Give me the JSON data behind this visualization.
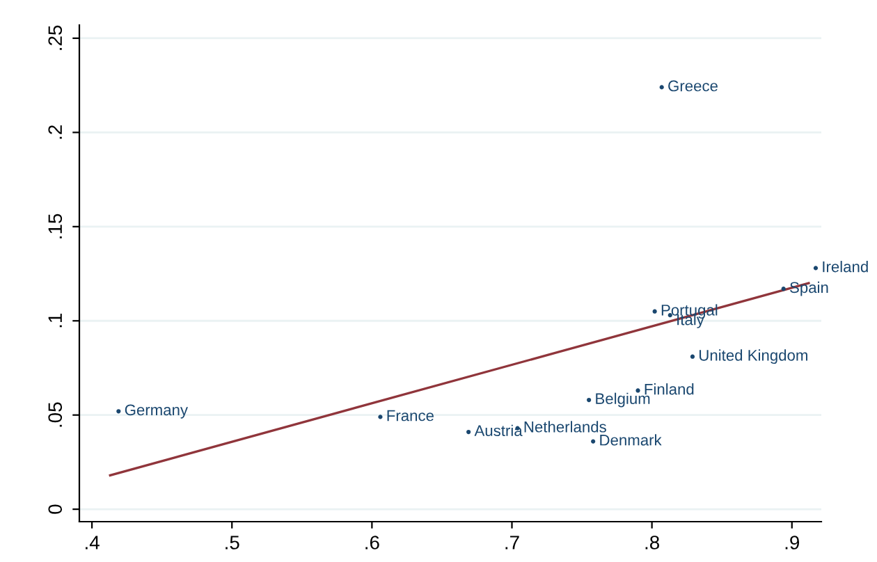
{
  "chart_data": {
    "type": "scatter",
    "xlim": [
      0.391,
      0.921
    ],
    "ylim": [
      -0.0066,
      0.257
    ],
    "xticks": [
      {
        "value": 0.4,
        "label": ".4"
      },
      {
        "value": 0.5,
        "label": ".5"
      },
      {
        "value": 0.6,
        "label": ".6"
      },
      {
        "value": 0.7,
        "label": ".7"
      },
      {
        "value": 0.8,
        "label": ".8"
      },
      {
        "value": 0.9,
        "label": ".9"
      }
    ],
    "yticks": [
      0,
      {
        "value": 0.05,
        "label": ".05"
      },
      {
        "value": 0.1,
        "label": ".1"
      },
      {
        "value": 0.15,
        "label": ".15"
      },
      {
        "value": 0.2,
        "label": ".2"
      },
      {
        "value": 0.25,
        "label": ".25"
      }
    ],
    "grid": "y",
    "series": [
      {
        "marker": "circle",
        "color": "#1a476f",
        "x": [
          0.419,
          0.606,
          0.669,
          0.704,
          0.758,
          0.755,
          0.79,
          0.829,
          0.802,
          0.813,
          0.894,
          0.917,
          0.807
        ],
        "values": [
          0.052,
          0.049,
          0.041,
          0.043,
          0.036,
          0.058,
          0.063,
          0.081,
          0.105,
          0.103,
          0.117,
          0.128,
          0.224
        ],
        "value_labels": [
          "Germany",
          "France",
          "Austria",
          "Netherlands",
          "Denmark",
          "Belgium",
          "Finland",
          "United Kingdom",
          "Portugal",
          "Italy",
          "Spain",
          "Ireland",
          "Greece"
        ]
      },
      {
        "type": "line",
        "marker": "none",
        "color": "#90353b",
        "x": [
          0.413,
          0.912
        ],
        "values": [
          0.018,
          0.12
        ]
      }
    ]
  }
}
